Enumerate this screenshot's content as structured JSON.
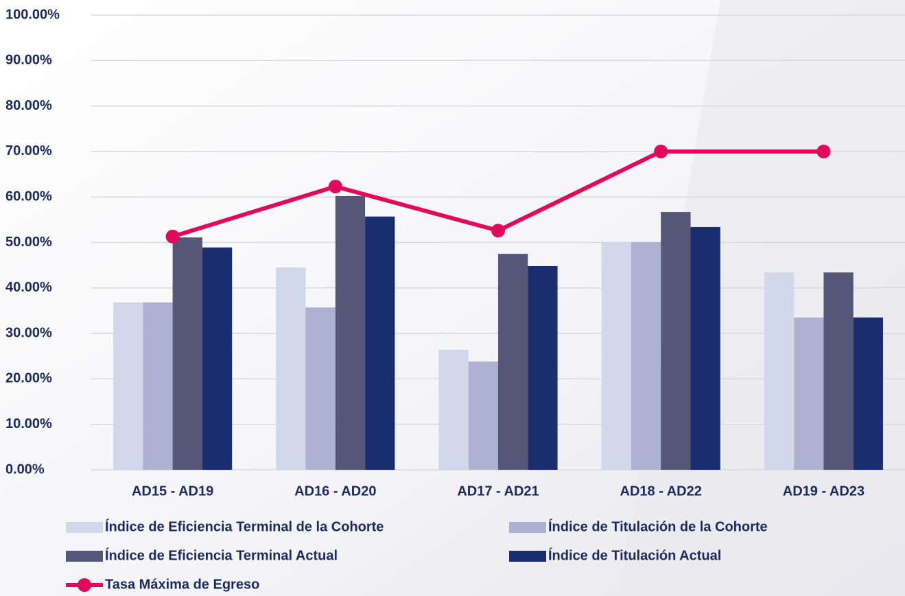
{
  "chart_data": {
    "type": "bar_line",
    "categories": [
      "AD15 - AD19",
      "AD16 - AD20",
      "AD17 - AD21",
      "AD18 - AD22",
      "AD19 - AD23"
    ],
    "series": [
      {
        "name": "Índice de Eficiencia Terminal de la Cohorte",
        "type": "bar",
        "color": "#d0d8ea",
        "values": [
          36.8,
          44.5,
          26.4,
          50.1,
          43.4
        ]
      },
      {
        "name": "Índice de Titulación de la Cohorte",
        "type": "bar",
        "color": "#adb1d3",
        "values": [
          36.8,
          35.7,
          23.8,
          50.1,
          33.5
        ]
      },
      {
        "name": "Índice de Eficiencia Terminal Actual",
        "type": "bar",
        "color": "#565679",
        "values": [
          51.1,
          60.2,
          47.5,
          56.7,
          43.4
        ]
      },
      {
        "name": "Índice de Titulación Actual",
        "type": "bar",
        "color": "#1a2d6e",
        "values": [
          48.9,
          55.7,
          44.8,
          53.4,
          33.5
        ]
      },
      {
        "name": "Tasa Máxima de Egreso",
        "type": "line",
        "color": "#e0095b",
        "values": [
          51.3,
          62.3,
          52.6,
          70.0,
          70.0
        ]
      }
    ],
    "ylim": [
      0,
      100
    ],
    "yticks": [
      {
        "value": 0,
        "label": "0.00%"
      },
      {
        "value": 10,
        "label": "10.00%"
      },
      {
        "value": 20,
        "label": "20.00%"
      },
      {
        "value": 30,
        "label": "30.00%"
      },
      {
        "value": 40,
        "label": "40.00%"
      },
      {
        "value": 50,
        "label": "50.00%"
      },
      {
        "value": 60,
        "label": "60.00%"
      },
      {
        "value": 70,
        "label": "70.00%"
      },
      {
        "value": 80,
        "label": "80.00%"
      },
      {
        "value": 90,
        "label": "90.00%"
      },
      {
        "value": 100,
        "label": "100.00%"
      }
    ],
    "grid": true
  }
}
